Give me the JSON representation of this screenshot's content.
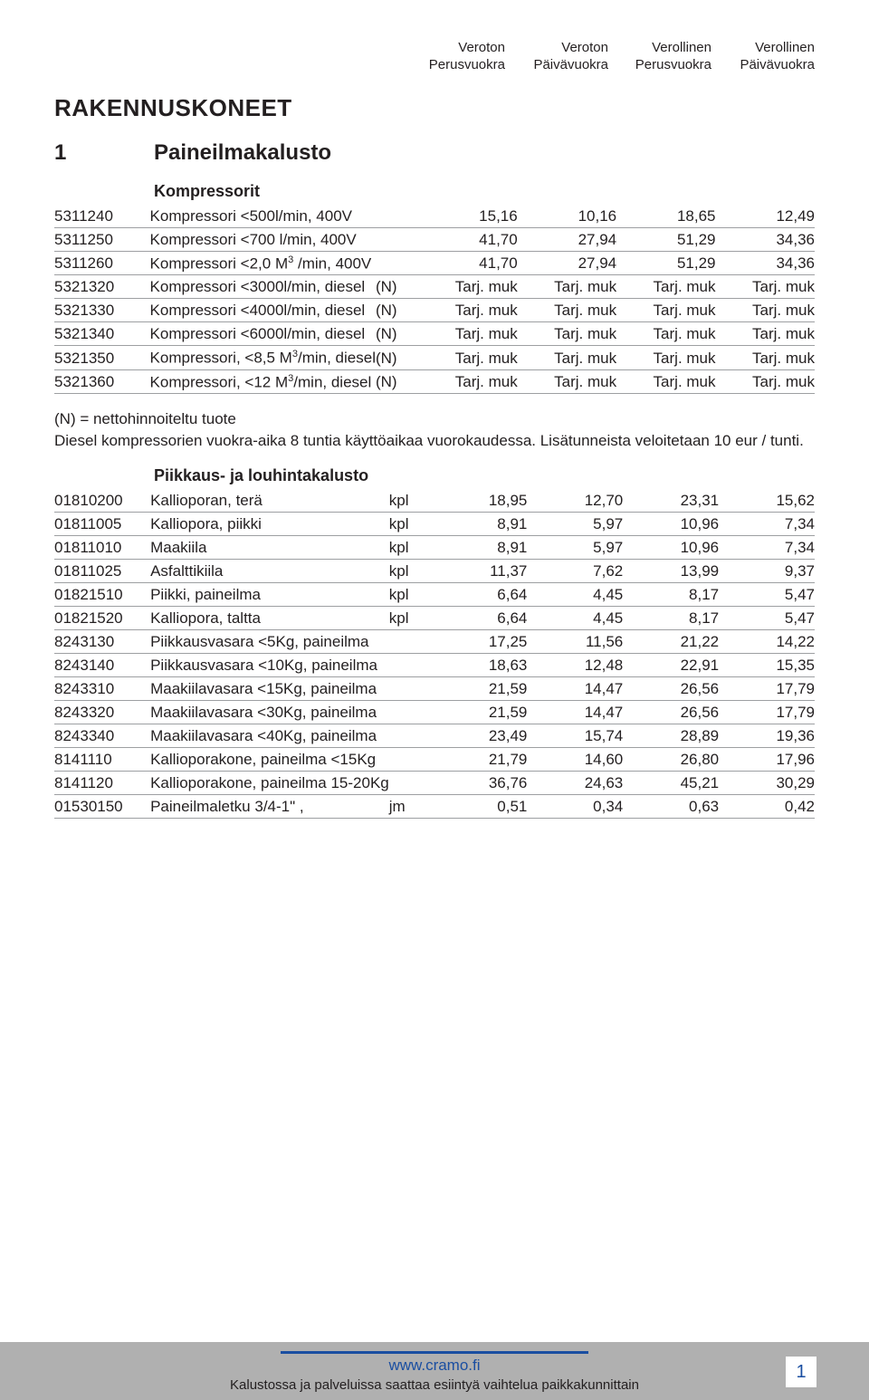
{
  "headers": {
    "c1": {
      "l1": "Veroton",
      "l2": "Perusvuokra"
    },
    "c2": {
      "l1": "Veroton",
      "l2": "Päivävuokra"
    },
    "c3": {
      "l1": "Verollinen",
      "l2": "Perusvuokra"
    },
    "c4": {
      "l1": "Verollinen",
      "l2": "Päivävuokra"
    }
  },
  "title": "RAKENNUSKONEET",
  "section": {
    "num": "1",
    "name": "Paineilmakalusto"
  },
  "sub1": "Kompressorit",
  "t1": [
    {
      "code": "5311240",
      "desc": "Kompressori <500l/min, 400V",
      "unit": "",
      "v": [
        "15,16",
        "10,16",
        "18,65",
        "12,49"
      ]
    },
    {
      "code": "5311250",
      "desc": "Kompressori <700 l/min, 400V",
      "unit": "",
      "v": [
        "41,70",
        "27,94",
        "51,29",
        "34,36"
      ]
    },
    {
      "code": "5311260",
      "desc": "Kompressori <2,0 M³ /min, 400V",
      "unit": "",
      "v": [
        "41,70",
        "27,94",
        "51,29",
        "34,36"
      ]
    },
    {
      "code": "5321320",
      "desc": "Kompressori <3000l/min, diesel",
      "unit": "(N)",
      "v": [
        "Tarj. muk",
        "Tarj. muk",
        "Tarj. muk",
        "Tarj. muk"
      ]
    },
    {
      "code": "5321330",
      "desc": "Kompressori <4000l/min, diesel",
      "unit": "(N)",
      "v": [
        "Tarj. muk",
        "Tarj. muk",
        "Tarj. muk",
        "Tarj. muk"
      ]
    },
    {
      "code": "5321340",
      "desc": "Kompressori <6000l/min, diesel",
      "unit": "(N)",
      "v": [
        "Tarj. muk",
        "Tarj. muk",
        "Tarj. muk",
        "Tarj. muk"
      ]
    },
    {
      "code": "5321350",
      "desc": "Kompressori, <8,5 M³/min, diesel",
      "unit": "(N)",
      "v": [
        "Tarj. muk",
        "Tarj. muk",
        "Tarj. muk",
        "Tarj. muk"
      ]
    },
    {
      "code": "5321360",
      "desc": "Kompressori, <12 M³/min, diesel",
      "unit": "(N)",
      "v": [
        "Tarj. muk",
        "Tarj. muk",
        "Tarj. muk",
        "Tarj. muk"
      ]
    }
  ],
  "note1": "(N) = nettohinnoiteltu tuote",
  "note2": "Diesel kompressorien vuokra-aika 8 tuntia käyttöaikaa vuorokaudessa. Lisätunneista veloitetaan 10 eur / tunti.",
  "sub2": "Piikkaus- ja louhintakalusto",
  "t2": [
    {
      "code": "01810200",
      "desc": "Kallioporan, terä",
      "unit": "kpl",
      "v": [
        "18,95",
        "12,70",
        "23,31",
        "15,62"
      ]
    },
    {
      "code": "01811005",
      "desc": "Kalliopora, piikki",
      "unit": "kpl",
      "v": [
        "8,91",
        "5,97",
        "10,96",
        "7,34"
      ]
    },
    {
      "code": "01811010",
      "desc": "Maakiila",
      "unit": "kpl",
      "v": [
        "8,91",
        "5,97",
        "10,96",
        "7,34"
      ]
    },
    {
      "code": "01811025",
      "desc": "Asfalttikiila",
      "unit": "kpl",
      "v": [
        "11,37",
        "7,62",
        "13,99",
        "9,37"
      ]
    },
    {
      "code": "01821510",
      "desc": "Piikki, paineilma",
      "unit": "kpl",
      "v": [
        "6,64",
        "4,45",
        "8,17",
        "5,47"
      ]
    },
    {
      "code": "01821520",
      "desc": "Kalliopora, taltta",
      "unit": "kpl",
      "v": [
        "6,64",
        "4,45",
        "8,17",
        "5,47"
      ]
    },
    {
      "code": "8243130",
      "desc": "Piikkausvasara <5Kg, paineilma",
      "unit": "",
      "v": [
        "17,25",
        "11,56",
        "21,22",
        "14,22"
      ]
    },
    {
      "code": "8243140",
      "desc": "Piikkausvasara <10Kg, paineilma",
      "unit": "",
      "v": [
        "18,63",
        "12,48",
        "22,91",
        "15,35"
      ]
    },
    {
      "code": "8243310",
      "desc": "Maakiilavasara <15Kg, paineilma",
      "unit": "",
      "v": [
        "21,59",
        "14,47",
        "26,56",
        "17,79"
      ]
    },
    {
      "code": "8243320",
      "desc": "Maakiilavasara <30Kg, paineilma",
      "unit": "",
      "v": [
        "21,59",
        "14,47",
        "26,56",
        "17,79"
      ]
    },
    {
      "code": "8243340",
      "desc": "Maakiilavasara <40Kg, paineilma",
      "unit": "",
      "v": [
        "23,49",
        "15,74",
        "28,89",
        "19,36"
      ]
    },
    {
      "code": "8141110",
      "desc": "Kallioporakone, paineilma <15Kg",
      "unit": "",
      "v": [
        "21,79",
        "14,60",
        "26,80",
        "17,96"
      ]
    },
    {
      "code": "8141120",
      "desc": "Kallioporakone, paineilma 15-20Kg",
      "unit": "",
      "v": [
        "36,76",
        "24,63",
        "45,21",
        "30,29"
      ]
    },
    {
      "code": "01530150",
      "desc": "Paineilmaletku 3/4-1\" ,",
      "unit": "jm",
      "v": [
        "0,51",
        "0,34",
        "0,63",
        "0,42"
      ]
    }
  ],
  "footer": {
    "url": "www.cramo.fi",
    "sub": "Kalustossa ja palveluissa saattaa esiintyä vaihtelua paikkakunnittain",
    "page": "1"
  }
}
